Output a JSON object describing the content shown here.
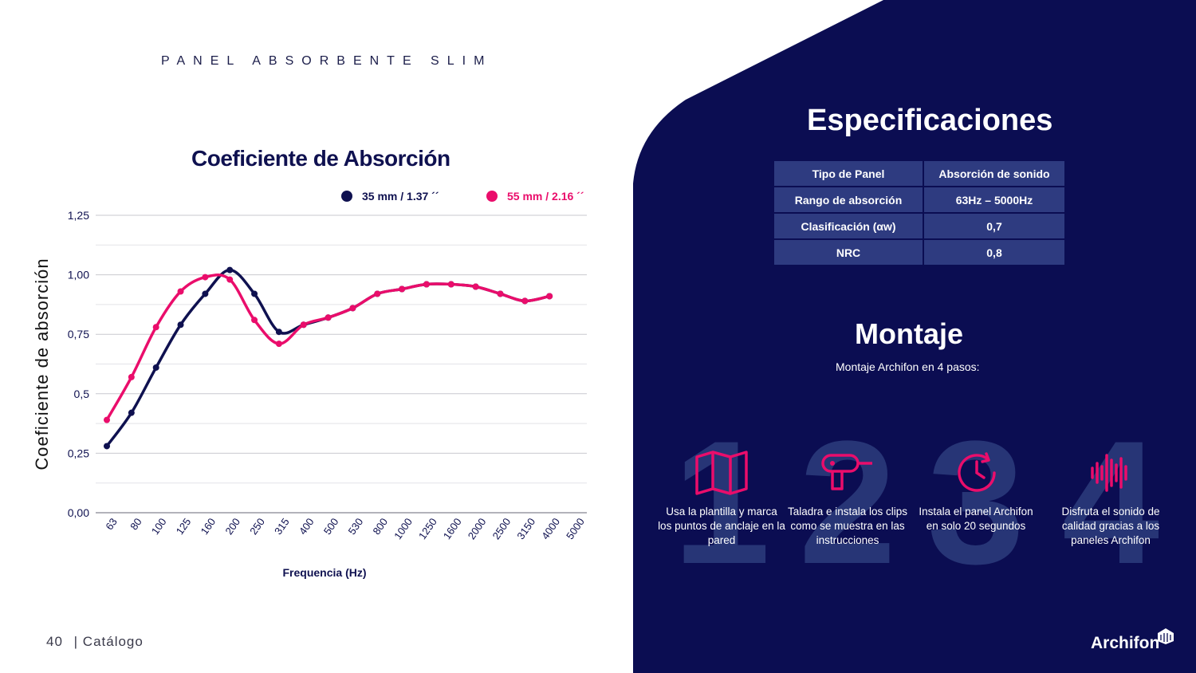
{
  "header": {
    "title": "PANEL ABSORBENTE SLIM"
  },
  "colors": {
    "navy": "#0b0d52",
    "pink": "#ea0d6b",
    "dark_series": "#0f1150",
    "table_cell": "#2e3b80"
  },
  "chart_data": {
    "type": "line",
    "title": "Coeficiente de Absorción",
    "xlabel": "Frequencia (Hz)",
    "ylabel": "Coeficiente de absorción",
    "categories": [
      "63",
      "80",
      "100",
      "125",
      "160",
      "200",
      "250",
      "315",
      "400",
      "500",
      "530",
      "800",
      "1000",
      "1250",
      "1600",
      "2000",
      "2500",
      "3150",
      "4000",
      "5000"
    ],
    "y_ticks": [
      "1,25",
      "1,00",
      "0,75",
      "0,5",
      "0,25",
      "0,00"
    ],
    "ylim": [
      0,
      1.25
    ],
    "grid": true,
    "legend_position": "top-right",
    "series": [
      {
        "name": "35 mm / 1.37 ´´",
        "color": "#0f1150",
        "values": [
          0.28,
          0.42,
          0.61,
          0.79,
          0.92,
          1.02,
          0.92,
          0.76,
          0.79,
          0.82,
          0.86,
          0.92,
          0.94,
          0.96,
          0.96,
          0.95,
          0.92,
          0.89,
          0.91,
          null
        ]
      },
      {
        "name": "55 mm / 2.16 ´´",
        "color": "#ea0d6b",
        "values": [
          0.39,
          0.57,
          0.78,
          0.93,
          0.99,
          0.98,
          0.81,
          0.71,
          0.79,
          0.82,
          0.86,
          0.92,
          0.94,
          0.96,
          0.96,
          0.95,
          0.92,
          0.89,
          0.91,
          null
        ]
      }
    ]
  },
  "specs": {
    "title": "Especificaciones",
    "headers": [
      "Tipo de Panel",
      "Absorción de sonido"
    ],
    "rows": [
      [
        "Rango de absorción",
        "63Hz – 5000Hz"
      ],
      [
        "Clasificación  (αw)",
        "0,7"
      ],
      [
        "NRC",
        "0,8"
      ]
    ]
  },
  "montaje": {
    "title": "Montaje",
    "subtitle": "Montaje Archifon en 4 pasos:",
    "steps": [
      {
        "number": "1",
        "icon": "map-icon",
        "text": "Usa la plantilla y marca los puntos de anclaje en la pared"
      },
      {
        "number": "2",
        "icon": "drill-icon",
        "text": "Taladra e instala los clips como se muestra en las instrucciones"
      },
      {
        "number": "3",
        "icon": "clock-icon",
        "text": "Instala el panel Archifon en solo 20 segundos"
      },
      {
        "number": "4",
        "icon": "soundwave-icon",
        "text": "Disfruta el sonido de calidad gracias a los paneles Archifon"
      }
    ]
  },
  "footer": {
    "page": "40",
    "label": "| Catálogo"
  },
  "brand": {
    "name": "Archifon"
  }
}
